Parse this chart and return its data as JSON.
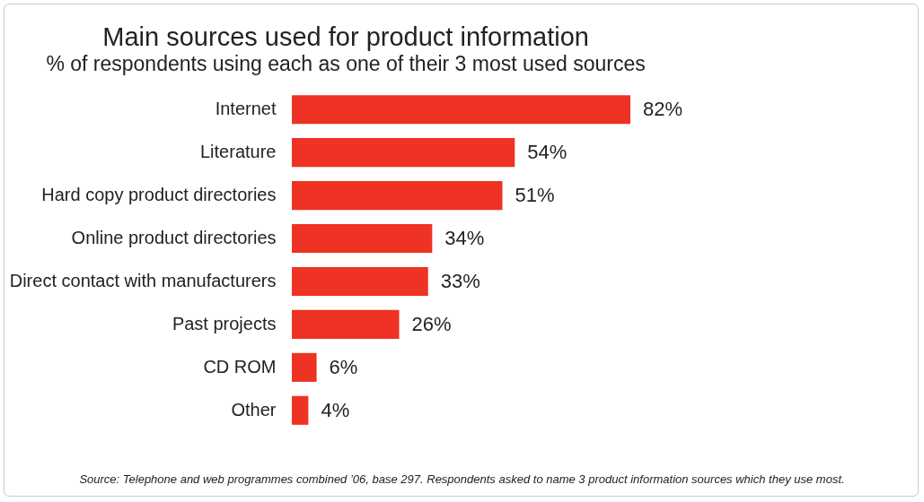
{
  "chart_data": {
    "type": "bar",
    "orientation": "horizontal",
    "title": "Main sources used for product information",
    "subtitle": "% of respondents using each as one of their 3 most used sources",
    "categories": [
      "Internet",
      "Literature",
      "Hard copy product directories",
      "Online product directories",
      "Direct contact with manufacturers",
      "Past projects",
      "CD ROM",
      "Other"
    ],
    "values": [
      82,
      54,
      51,
      34,
      33,
      26,
      6,
      4
    ],
    "value_labels": [
      "82%",
      "54%",
      "51%",
      "34%",
      "33%",
      "26%",
      "6%",
      "4%"
    ],
    "color": "#ee3224",
    "annotations": [
      "Source: Telephone and web programmes combined ’06, base 297. Respondents asked to name 3 product information sources which they use most."
    ]
  }
}
